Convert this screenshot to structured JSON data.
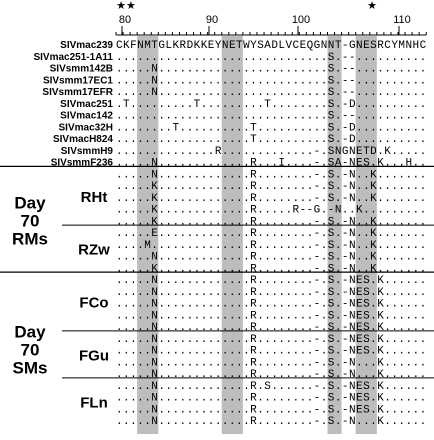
{
  "figure": {
    "stars": [
      "★★",
      "★"
    ],
    "ruler": [
      "80",
      "90",
      "100",
      "110"
    ],
    "reference": {
      "label": "SIVmac239",
      "sequence": "CKFNMTGLKRDKKEYNETWYSADLVCEQGNNT-GNESRCYMNHC"
    },
    "isolates": [
      {
        "label": "SIVmac251-1A11",
        "sequence": "..............................S.--.........."
      },
      {
        "label": "SIVsmm142B",
        "sequence": ".....N........................S.--.........."
      },
      {
        "label": "SIVsmm17EC1",
        "sequence": ".....N........................S.--.........."
      },
      {
        "label": "SIVsmm17EFR",
        "sequence": ".....N........................S.--.........."
      },
      {
        "label": "SIVmac251",
        "sequence": ".T.........T.........T........S.-D.........."
      },
      {
        "label": "SIVmac142",
        "sequence": "..............................S.--.........."
      },
      {
        "label": "SIVmac32H",
        "sequence": "........T..........T..........S.-D.........."
      },
      {
        "label": "SIVmacH824",
        "sequence": "...................T..........S.-D.........."
      },
      {
        "label": "SIVsmmH9",
        "sequence": "..............R.............-.SNGNETD.K....."
      },
      {
        "label": "SIVsmmF236",
        "sequence": ".....N.............R...I....-.SA-NES.K...H.."
      }
    ],
    "groups": [
      {
        "lines": [
          "Day",
          "70",
          "RMs"
        ],
        "subgroups": [
          {
            "label": "RHt",
            "sequences": [
              ".....N.............R........-.S.-N..K.......",
              ".....K.............R........-.S.-N..K.......",
              ".....K.............R........-.S.-N..K.......",
              ".....K.............R.....R--G.-N..K.........",
              ".....K.............R........-.S.-N..K......."
            ]
          },
          {
            "label": "RZw",
            "sequences": [
              ".....E.............R........-.S.-N..K.......",
              "....M..............R........-.S.-N..K.......",
              ".....N.............R........-.S.-N..K.......",
              ".....K.............R........-.S.-N..K......."
            ]
          }
        ]
      },
      {
        "lines": [
          "Day",
          "70",
          "SMs"
        ],
        "subgroups": [
          {
            "label": "FCo",
            "sequences": [
              ".....N.............R........-.S.-NES.K......",
              ".....N.............R........-.S.-NES.K......",
              ".....N.............R........-.S.-NES.K......",
              ".....N.............R........-.S.-NES.K......",
              ".....N.............R........-.S.-NES.K......"
            ]
          },
          {
            "label": "FGu",
            "sequences": [
              ".....N.............R........-.S.-NES.K......",
              ".....N.............R........-.S.-NES.K......",
              ".....N.............R........-.S.-N...K......",
              ".....N.............R........-.S.-N...K......"
            ]
          },
          {
            "label": "FLn",
            "sequences": [
              ".....N.............R.S......-.S.-NES.K......",
              ".....N.............R........-.S.-NES.K......",
              ".....N.............R........-.S.-NES.K......",
              ".....N.............R........-.S.-N...K......"
            ]
          }
        ]
      }
    ]
  }
}
